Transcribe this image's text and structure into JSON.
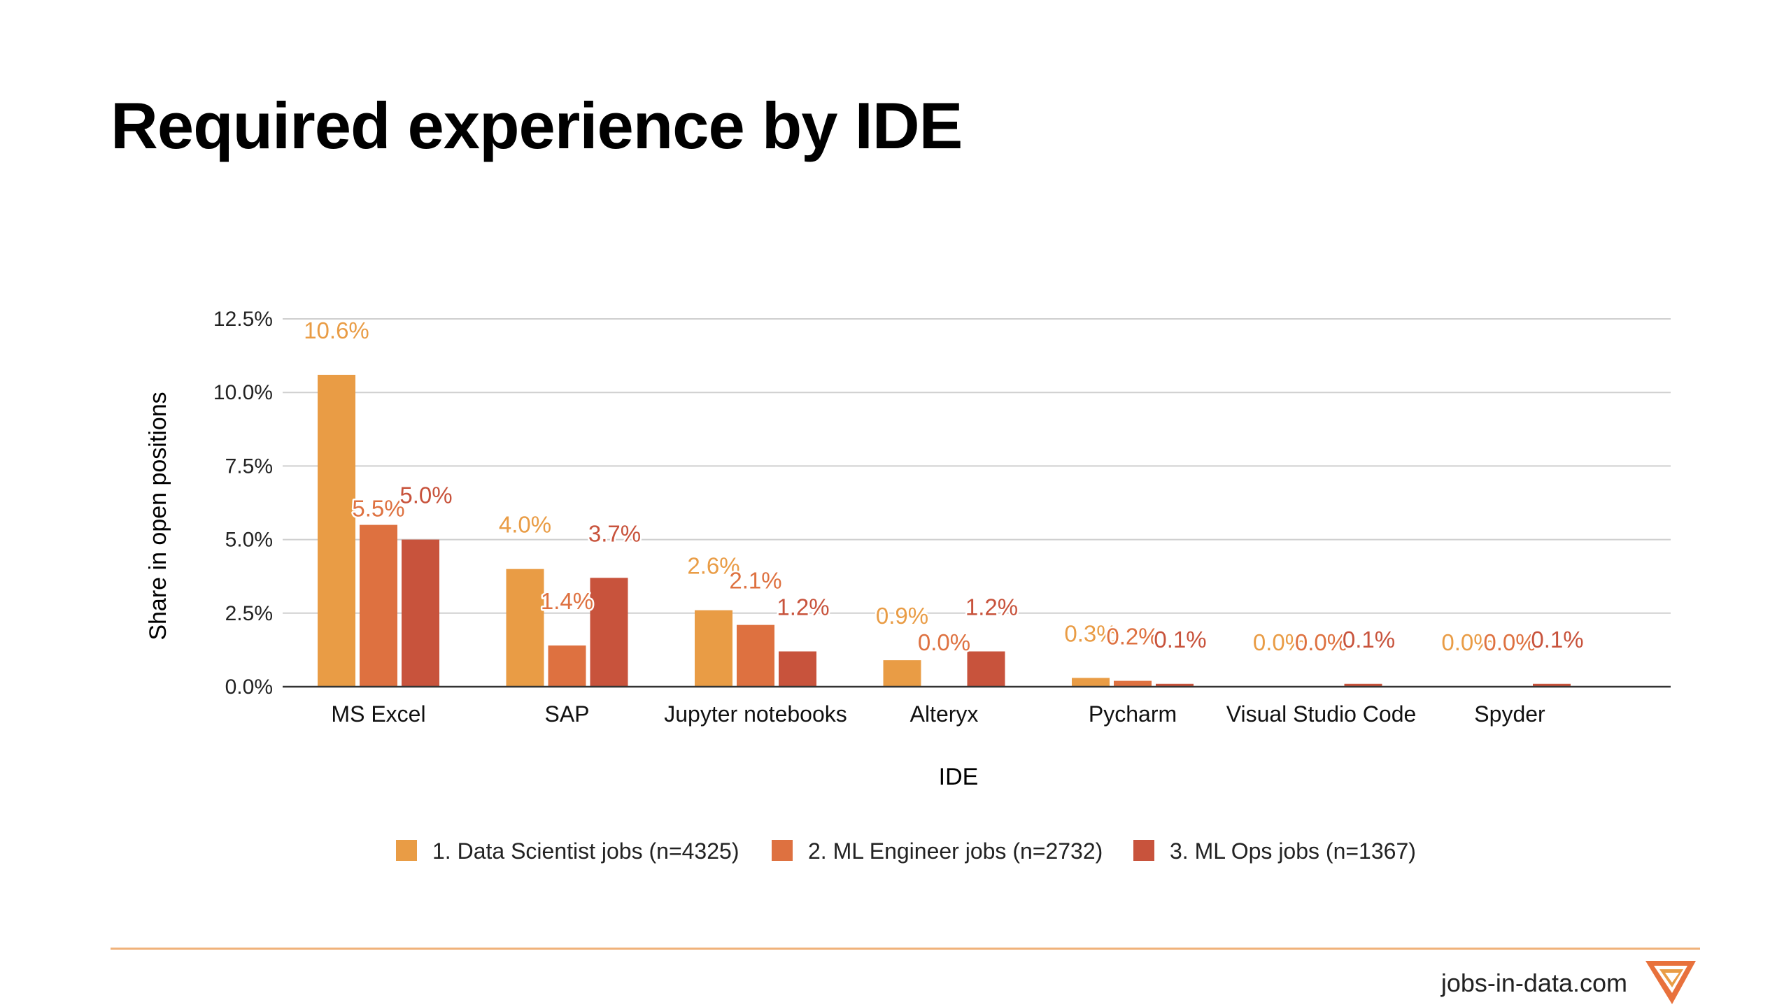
{
  "page": {
    "title": "Required experience by IDE",
    "footer_site": "jobs-in-data.com",
    "logo_icon": "jobs-in-data-logo-icon"
  },
  "chart_data": {
    "type": "bar",
    "title": "Required experience by IDE",
    "xlabel": "IDE",
    "ylabel": "Share in open positions",
    "ylim": [
      0,
      12.5
    ],
    "yticks": [
      0,
      2.5,
      5,
      7.5,
      10,
      12.5
    ],
    "ytick_labels": [
      "0.0%",
      "2.5%",
      "5.0%",
      "7.5%",
      "10.0%",
      "12.5%"
    ],
    "grid": true,
    "legend_position": "bottom",
    "categories": [
      "MS Excel",
      "SAP",
      "Jupyter notebooks",
      "Alteryx",
      "Pycharm",
      "Visual Studio Code",
      "Spyder"
    ],
    "series": [
      {
        "name": "1. Data Scientist jobs (n=4325)",
        "color": "#E99C45",
        "values": [
          10.6,
          4.0,
          2.6,
          0.9,
          0.3,
          0.0,
          0.0
        ],
        "labels": [
          "10.6%",
          "4.0%",
          "2.6%",
          "0.9%",
          "0.3%",
          "0.0%",
          "0.0%"
        ]
      },
      {
        "name": "2. ML Engineer jobs (n=2732)",
        "color": "#DE7140",
        "values": [
          5.5,
          1.4,
          2.1,
          0.0,
          0.2,
          0.0,
          0.0
        ],
        "labels": [
          "5.5%",
          "1.4%",
          "2.1%",
          "0.0%",
          "0.2%",
          "0.0%",
          "0.0%"
        ]
      },
      {
        "name": "3. ML Ops jobs (n=1367)",
        "color": "#C8533C",
        "values": [
          5.0,
          3.7,
          1.2,
          1.2,
          0.1,
          0.1,
          0.1
        ],
        "labels": [
          "5.0%",
          "3.7%",
          "1.2%",
          "1.2%",
          "0.1%",
          "0.1%",
          "0.1%"
        ]
      }
    ]
  }
}
